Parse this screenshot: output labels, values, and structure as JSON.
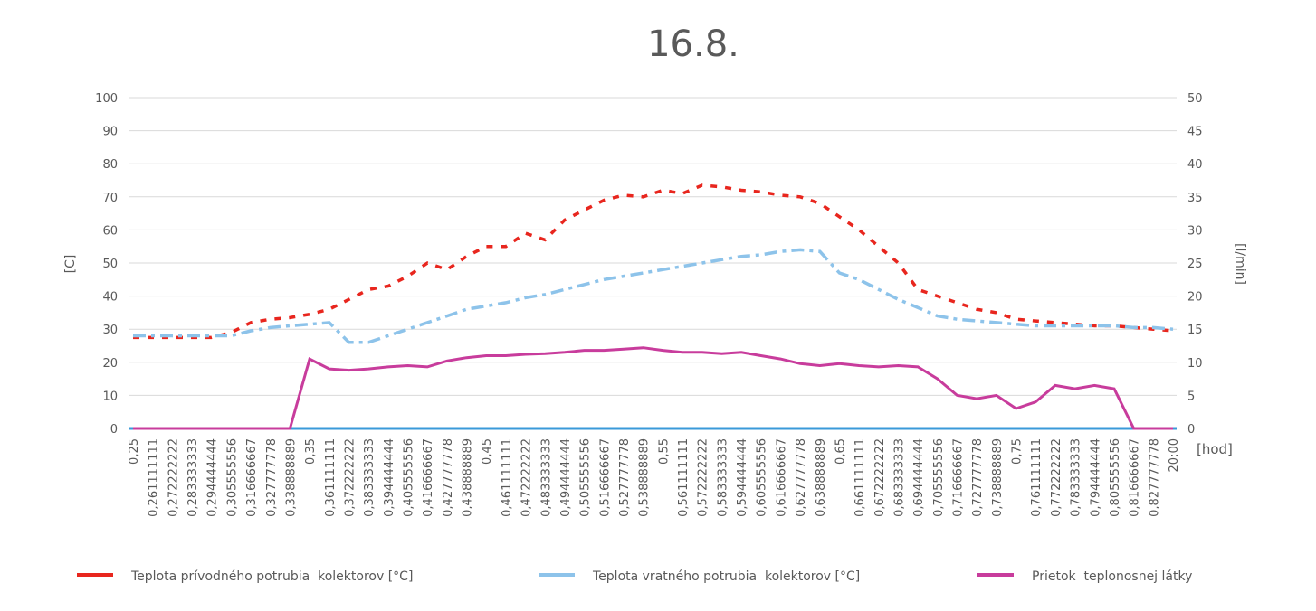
{
  "chart_data": {
    "type": "line",
    "title": "16.8.",
    "ylabel": "[C]",
    "y2label": "[l/min]",
    "xlabel": "[hod]",
    "ylim": [
      0,
      100
    ],
    "y2lim": [
      0,
      50
    ],
    "yticks": [
      0,
      10,
      20,
      30,
      40,
      50,
      60,
      70,
      80,
      90,
      100
    ],
    "y2ticks": [
      0,
      5,
      10,
      15,
      20,
      25,
      30,
      35,
      40,
      45,
      50
    ],
    "grid": true,
    "legend_position": "bottom",
    "categories": [
      "0,25",
      "0,261111111",
      "0,272222222",
      "0,283333333",
      "0,294444444",
      "0,305555556",
      "0,316666667",
      "0,327777778",
      "0,338888889",
      "0,35",
      "0,361111111",
      "0,372222222",
      "0,383333333",
      "0,394444444",
      "0,405555556",
      "0,416666667",
      "0,427777778",
      "0,438888889",
      "0,45",
      "0,461111111",
      "0,472222222",
      "0,483333333",
      "0,494444444",
      "0,505555556",
      "0,516666667",
      "0,527777778",
      "0,538888889",
      "0,55",
      "0,561111111",
      "0,572222222",
      "0,583333333",
      "0,594444444",
      "0,605555556",
      "0,616666667",
      "0,627777778",
      "0,638888889",
      "0,65",
      "0,661111111",
      "0,672222222",
      "0,683333333",
      "0,694444444",
      "0,705555556",
      "0,716666667",
      "0,727777778",
      "0,738888889",
      "0,75",
      "0,761111111",
      "0,772222222",
      "0,783333333",
      "0,794444444",
      "0,805555556",
      "0,816666667",
      "0,827777778",
      "20:00"
    ],
    "series": [
      {
        "name": "Teplota prívodného potrubia  kolektorov [°C]",
        "axis": "left",
        "color": "#e8261e",
        "style": "dashed",
        "values": [
          27.5,
          27.5,
          27.5,
          27.5,
          27.5,
          29,
          32,
          33,
          33.5,
          34.5,
          36,
          39,
          42,
          43,
          46,
          50,
          48,
          52,
          55,
          55,
          59,
          57,
          63,
          66,
          69,
          70.5,
          70,
          72,
          71,
          73.5,
          73,
          72,
          71.5,
          70.5,
          70,
          68,
          64,
          60,
          55,
          50,
          42,
          40,
          38,
          36,
          35,
          33,
          32.5,
          32,
          31.5,
          31,
          31,
          30.5,
          30,
          29.5
        ]
      },
      {
        "name": "Teplota vratného potrubia  kolektorov [°C]",
        "axis": "left",
        "color": "#8dc3ea",
        "style": "dash-dot",
        "values": [
          28,
          28,
          28,
          28,
          28,
          28,
          29.5,
          30.5,
          31,
          31.5,
          32,
          26,
          26,
          28,
          30,
          32,
          34,
          36,
          37,
          38,
          39.5,
          40.5,
          42,
          43.5,
          45,
          46,
          47,
          48,
          49,
          50,
          51,
          52,
          52.5,
          53.5,
          54,
          53.5,
          47,
          45,
          42,
          39,
          36.5,
          34,
          33,
          32.5,
          32,
          31.5,
          31,
          31,
          31,
          31,
          31,
          30.5,
          30.5,
          30
        ]
      },
      {
        "name": "Prietok  teplonosnej látky",
        "axis": "right",
        "color": "#c83c9c",
        "style": "solid",
        "values": [
          0,
          0,
          0,
          0,
          0,
          0,
          0,
          0,
          0,
          10.5,
          9,
          8.8,
          9,
          9.3,
          9.5,
          9.3,
          10.2,
          10.7,
          11,
          11,
          11.2,
          11.3,
          11.5,
          11.8,
          11.8,
          12,
          12.2,
          11.8,
          11.5,
          11.5,
          11.3,
          11.5,
          11,
          10.5,
          9.8,
          9.5,
          9.8,
          9.5,
          9.3,
          9.5,
          9.3,
          7.5,
          5,
          4.5,
          5,
          3,
          4,
          6.5,
          6,
          6.5,
          6,
          0,
          0,
          0
        ]
      }
    ],
    "baseline_color": "#3a9ad9"
  }
}
